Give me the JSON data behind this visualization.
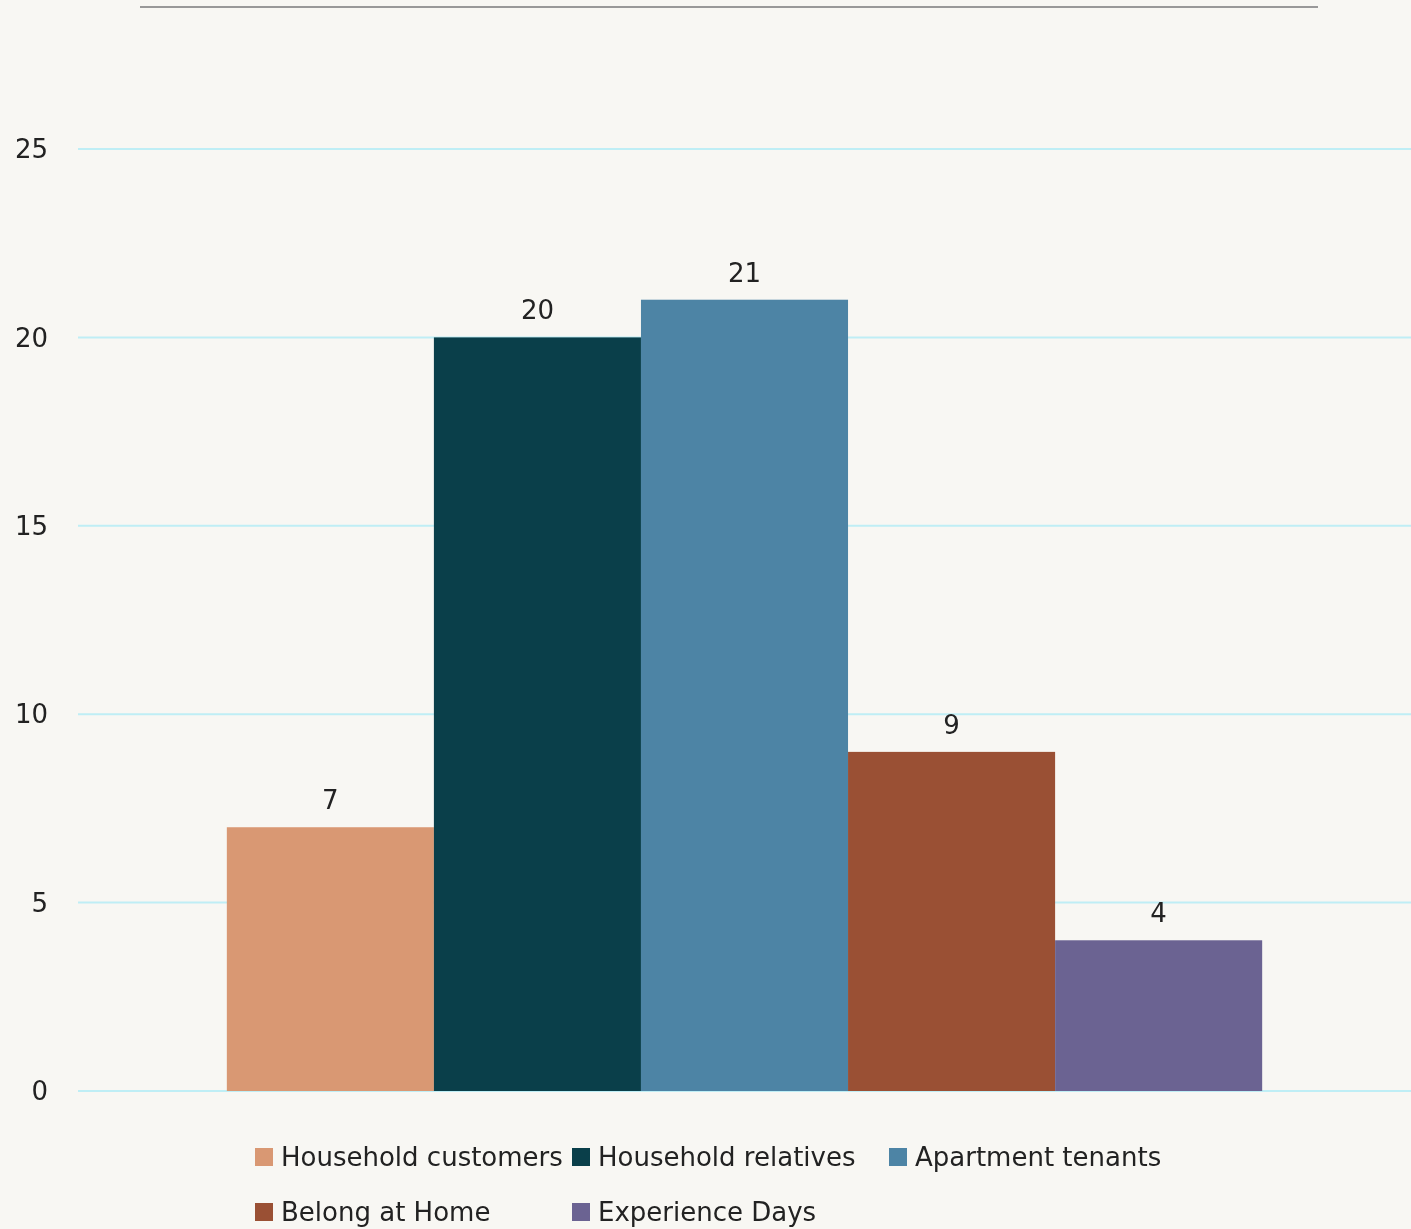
{
  "chart_data": {
    "type": "bar",
    "categories": [
      null
    ],
    "series": [
      {
        "name": "Household customers",
        "color": "#d99873",
        "values": [
          7
        ]
      },
      {
        "name": "Household relatives",
        "color": "#0a3f4a",
        "values": [
          20
        ]
      },
      {
        "name": "Apartment tenants",
        "color": "#4d84a5",
        "values": [
          21
        ]
      },
      {
        "name": "Belong at Home",
        "color": "#9a5034",
        "values": [
          9
        ]
      },
      {
        "name": "Experience Days",
        "color": "#6b6392",
        "values": [
          4
        ]
      }
    ],
    "ylim": [
      0,
      25
    ],
    "yticks": [
      0,
      5,
      10,
      15,
      20,
      25
    ],
    "grid": "y",
    "legend": "bottom",
    "data_labels": true
  }
}
